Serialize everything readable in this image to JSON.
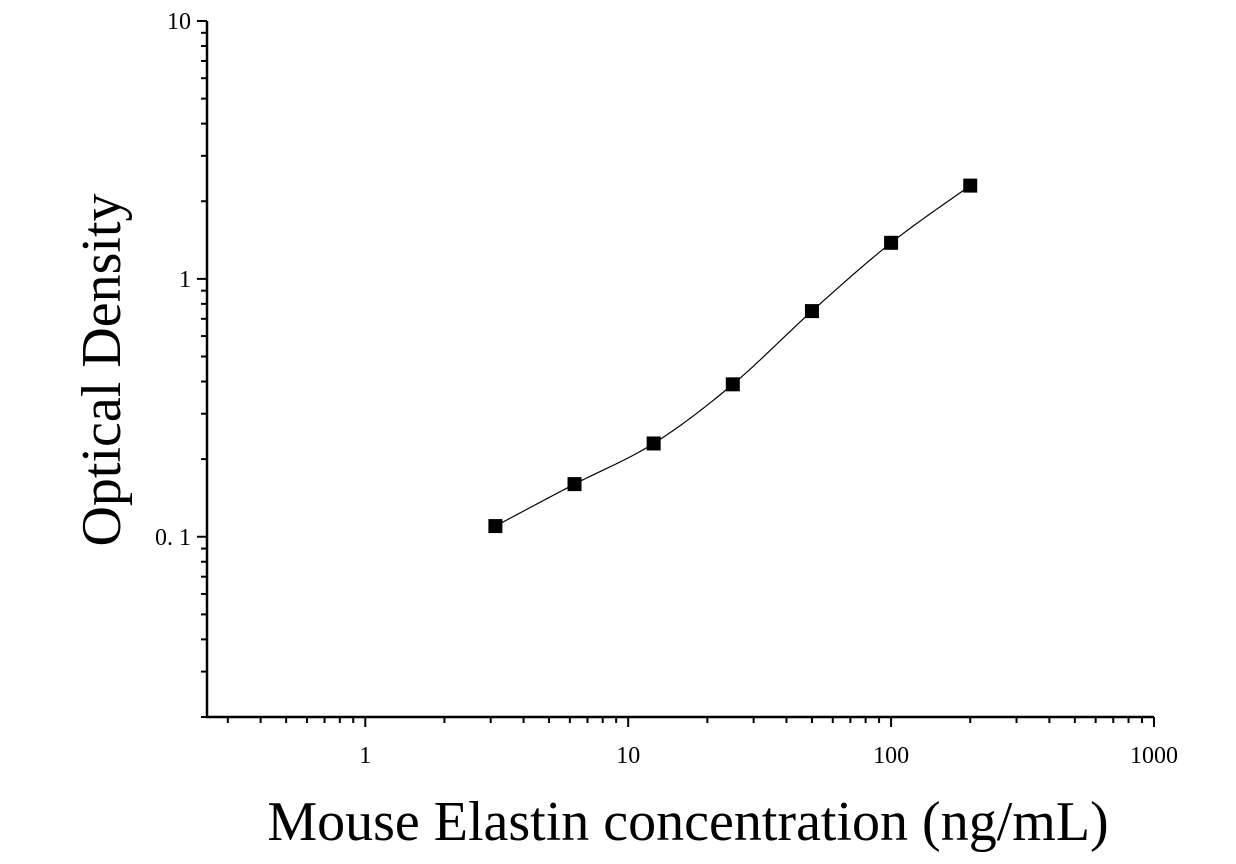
{
  "chart_data": {
    "type": "scatter",
    "xlabel": "Mouse Elastin concentration (ng/mL)",
    "ylabel": "Optical Density",
    "x_scale": "log",
    "y_scale": "log",
    "xlim": [
      0.25,
      1000
    ],
    "ylim": [
      0.02,
      10
    ],
    "x_ticks": [
      1,
      10,
      100,
      1000
    ],
    "x_tick_labels": [
      "1",
      "10",
      "100",
      "1000"
    ],
    "y_ticks": [
      0.1,
      1,
      10
    ],
    "y_tick_labels": [
      "0. 1",
      "1",
      "10"
    ],
    "grid": false,
    "legend": "none",
    "series": [
      {
        "marker": "square",
        "x": [
          3.125,
          6.25,
          12.5,
          25,
          50,
          100,
          200
        ],
        "y": [
          0.11,
          0.16,
          0.23,
          0.39,
          0.75,
          1.38,
          2.3
        ]
      }
    ],
    "fit_curve": true,
    "colors": {
      "marker": "#000000",
      "line": "#000000",
      "axis": "#000000"
    }
  }
}
